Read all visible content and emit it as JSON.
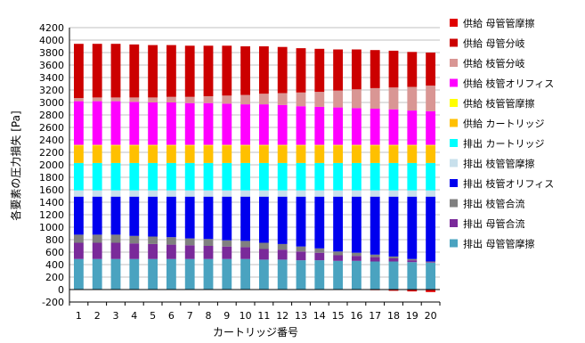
{
  "chart_data": {
    "type": "bar",
    "stacked": true,
    "xlabel": "カートリッジ番号",
    "ylabel": "各要素の圧力損失 [Pa]",
    "ylim": [
      -200,
      4200
    ],
    "yticks": [
      -200,
      0,
      200,
      400,
      600,
      800,
      1000,
      1200,
      1400,
      1600,
      1800,
      2000,
      2200,
      2400,
      2600,
      2800,
      3000,
      3200,
      3400,
      3600,
      3800,
      4000,
      4200
    ],
    "grid": true,
    "legend_position": "right",
    "categories": [
      "1",
      "2",
      "3",
      "4",
      "5",
      "6",
      "7",
      "8",
      "9",
      "10",
      "11",
      "12",
      "13",
      "14",
      "15",
      "16",
      "17",
      "18",
      "19",
      "20"
    ],
    "series": [
      {
        "name": "排出 母管管摩擦",
        "color": "#4aa3c0",
        "values": [
          490,
          490,
          490,
          490,
          490,
          490,
          490,
          490,
          490,
          490,
          480,
          480,
          470,
          470,
          460,
          460,
          450,
          450,
          440,
          430
        ]
      },
      {
        "name": "排出 母管合流",
        "color": "#7a2a9a",
        "values": [
          260,
          260,
          260,
          250,
          240,
          230,
          220,
          210,
          200,
          190,
          170,
          160,
          140,
          120,
          90,
          80,
          70,
          50,
          30,
          10
        ]
      },
      {
        "name": "排出 枝管合流",
        "color": "#808080",
        "values": [
          130,
          130,
          130,
          120,
          120,
          120,
          110,
          110,
          100,
          100,
          100,
          90,
          80,
          70,
          60,
          50,
          40,
          30,
          20,
          10
        ]
      },
      {
        "name": "排出 枝管オリフィス",
        "color": "#0000ee",
        "values": [
          610,
          610,
          610,
          630,
          640,
          650,
          670,
          680,
          700,
          710,
          740,
          760,
          800,
          830,
          880,
          900,
          930,
          960,
          1000,
          1040
        ]
      },
      {
        "name": "排出 枝管管摩擦",
        "color": "#c8e0ec",
        "values": [
          100,
          100,
          100,
          100,
          100,
          100,
          100,
          100,
          100,
          100,
          100,
          100,
          100,
          100,
          100,
          100,
          100,
          100,
          100,
          100
        ]
      },
      {
        "name": "排出 カートリッジ",
        "color": "#00ffff",
        "values": [
          440,
          440,
          440,
          440,
          440,
          440,
          440,
          440,
          440,
          440,
          440,
          440,
          440,
          440,
          440,
          440,
          440,
          440,
          440,
          440
        ]
      },
      {
        "name": "供給 カートリッジ",
        "color": "#ffc000",
        "values": [
          280,
          280,
          280,
          280,
          280,
          280,
          280,
          280,
          280,
          280,
          280,
          280,
          280,
          280,
          280,
          280,
          280,
          280,
          280,
          280
        ]
      },
      {
        "name": "供給 枝管管摩擦",
        "color": "#ffff00",
        "values": [
          10,
          10,
          10,
          10,
          10,
          10,
          10,
          10,
          10,
          10,
          10,
          10,
          10,
          10,
          10,
          10,
          10,
          10,
          10,
          10
        ]
      },
      {
        "name": "供給 枝管オリフィス",
        "color": "#ff00ff",
        "values": [
          700,
          700,
          700,
          690,
          680,
          680,
          670,
          670,
          660,
          650,
          650,
          640,
          620,
          610,
          600,
          590,
          580,
          570,
          550,
          540
        ]
      },
      {
        "name": "供給 枝管分岐",
        "color": "#d99694",
        "values": [
          50,
          60,
          60,
          70,
          80,
          90,
          100,
          110,
          130,
          150,
          170,
          190,
          220,
          240,
          270,
          300,
          330,
          350,
          380,
          410
        ]
      },
      {
        "name": "供給 母管分岐",
        "color": "#cc0000",
        "values": [
          870,
          860,
          860,
          850,
          840,
          830,
          820,
          810,
          800,
          780,
          760,
          740,
          710,
          690,
          660,
          640,
          610,
          590,
          560,
          530
        ]
      }
    ],
    "negative_series": [
      {
        "name": "供給 母管管摩擦",
        "color": "#e00000",
        "values": [
          0,
          0,
          0,
          0,
          0,
          0,
          0,
          0,
          0,
          0,
          0,
          0,
          0,
          0,
          0,
          0,
          -10,
          -20,
          -30,
          -40
        ]
      }
    ],
    "legend_order": [
      "供給 母管管摩擦",
      "供給 母管分岐",
      "供給 枝管分岐",
      "供給 枝管オリフィス",
      "供給 枝管管摩擦",
      "供給 カートリッジ",
      "排出 カートリッジ",
      "排出 枝管管摩擦",
      "排出 枝管オリフィス",
      "排出 枝管合流",
      "排出 母管合流",
      "排出 母管管摩擦"
    ]
  }
}
